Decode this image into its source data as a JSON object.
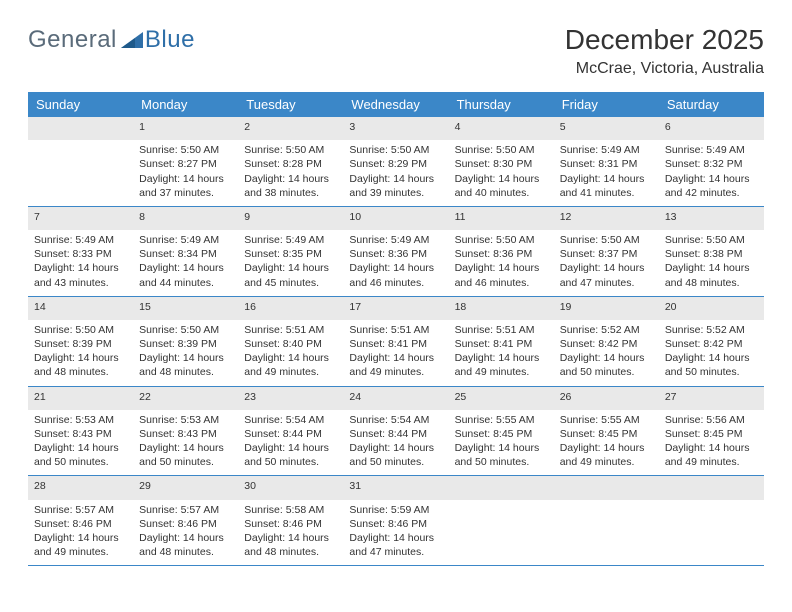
{
  "branding": {
    "logo_general": "General",
    "logo_blue": "Blue",
    "logo_mark_color": "#2f6fa8"
  },
  "header": {
    "month_title": "December 2025",
    "location": "McCrae, Victoria, Australia"
  },
  "calendar": {
    "type": "table",
    "header_bg": "#3b87c8",
    "header_fg": "#ffffff",
    "daynum_bg": "#e9e9e9",
    "row_border": "#3b87c8",
    "body_font_size": 10.5,
    "days": [
      "Sunday",
      "Monday",
      "Tuesday",
      "Wednesday",
      "Thursday",
      "Friday",
      "Saturday"
    ],
    "weeks": [
      {
        "nums": [
          "",
          "1",
          "2",
          "3",
          "4",
          "5",
          "6"
        ],
        "cells": [
          null,
          {
            "sunrise": "5:50 AM",
            "sunset": "8:27 PM",
            "daylight": "14 hours and 37 minutes."
          },
          {
            "sunrise": "5:50 AM",
            "sunset": "8:28 PM",
            "daylight": "14 hours and 38 minutes."
          },
          {
            "sunrise": "5:50 AM",
            "sunset": "8:29 PM",
            "daylight": "14 hours and 39 minutes."
          },
          {
            "sunrise": "5:50 AM",
            "sunset": "8:30 PM",
            "daylight": "14 hours and 40 minutes."
          },
          {
            "sunrise": "5:49 AM",
            "sunset": "8:31 PM",
            "daylight": "14 hours and 41 minutes."
          },
          {
            "sunrise": "5:49 AM",
            "sunset": "8:32 PM",
            "daylight": "14 hours and 42 minutes."
          }
        ]
      },
      {
        "nums": [
          "7",
          "8",
          "9",
          "10",
          "11",
          "12",
          "13"
        ],
        "cells": [
          {
            "sunrise": "5:49 AM",
            "sunset": "8:33 PM",
            "daylight": "14 hours and 43 minutes."
          },
          {
            "sunrise": "5:49 AM",
            "sunset": "8:34 PM",
            "daylight": "14 hours and 44 minutes."
          },
          {
            "sunrise": "5:49 AM",
            "sunset": "8:35 PM",
            "daylight": "14 hours and 45 minutes."
          },
          {
            "sunrise": "5:49 AM",
            "sunset": "8:36 PM",
            "daylight": "14 hours and 46 minutes."
          },
          {
            "sunrise": "5:50 AM",
            "sunset": "8:36 PM",
            "daylight": "14 hours and 46 minutes."
          },
          {
            "sunrise": "5:50 AM",
            "sunset": "8:37 PM",
            "daylight": "14 hours and 47 minutes."
          },
          {
            "sunrise": "5:50 AM",
            "sunset": "8:38 PM",
            "daylight": "14 hours and 48 minutes."
          }
        ]
      },
      {
        "nums": [
          "14",
          "15",
          "16",
          "17",
          "18",
          "19",
          "20"
        ],
        "cells": [
          {
            "sunrise": "5:50 AM",
            "sunset": "8:39 PM",
            "daylight": "14 hours and 48 minutes."
          },
          {
            "sunrise": "5:50 AM",
            "sunset": "8:39 PM",
            "daylight": "14 hours and 48 minutes."
          },
          {
            "sunrise": "5:51 AM",
            "sunset": "8:40 PM",
            "daylight": "14 hours and 49 minutes."
          },
          {
            "sunrise": "5:51 AM",
            "sunset": "8:41 PM",
            "daylight": "14 hours and 49 minutes."
          },
          {
            "sunrise": "5:51 AM",
            "sunset": "8:41 PM",
            "daylight": "14 hours and 49 minutes."
          },
          {
            "sunrise": "5:52 AM",
            "sunset": "8:42 PM",
            "daylight": "14 hours and 50 minutes."
          },
          {
            "sunrise": "5:52 AM",
            "sunset": "8:42 PM",
            "daylight": "14 hours and 50 minutes."
          }
        ]
      },
      {
        "nums": [
          "21",
          "22",
          "23",
          "24",
          "25",
          "26",
          "27"
        ],
        "cells": [
          {
            "sunrise": "5:53 AM",
            "sunset": "8:43 PM",
            "daylight": "14 hours and 50 minutes."
          },
          {
            "sunrise": "5:53 AM",
            "sunset": "8:43 PM",
            "daylight": "14 hours and 50 minutes."
          },
          {
            "sunrise": "5:54 AM",
            "sunset": "8:44 PM",
            "daylight": "14 hours and 50 minutes."
          },
          {
            "sunrise": "5:54 AM",
            "sunset": "8:44 PM",
            "daylight": "14 hours and 50 minutes."
          },
          {
            "sunrise": "5:55 AM",
            "sunset": "8:45 PM",
            "daylight": "14 hours and 50 minutes."
          },
          {
            "sunrise": "5:55 AM",
            "sunset": "8:45 PM",
            "daylight": "14 hours and 49 minutes."
          },
          {
            "sunrise": "5:56 AM",
            "sunset": "8:45 PM",
            "daylight": "14 hours and 49 minutes."
          }
        ]
      },
      {
        "nums": [
          "28",
          "29",
          "30",
          "31",
          "",
          "",
          ""
        ],
        "cells": [
          {
            "sunrise": "5:57 AM",
            "sunset": "8:46 PM",
            "daylight": "14 hours and 49 minutes."
          },
          {
            "sunrise": "5:57 AM",
            "sunset": "8:46 PM",
            "daylight": "14 hours and 48 minutes."
          },
          {
            "sunrise": "5:58 AM",
            "sunset": "8:46 PM",
            "daylight": "14 hours and 48 minutes."
          },
          {
            "sunrise": "5:59 AM",
            "sunset": "8:46 PM",
            "daylight": "14 hours and 47 minutes."
          },
          null,
          null,
          null
        ]
      }
    ],
    "labels": {
      "sunrise_prefix": "Sunrise: ",
      "sunset_prefix": "Sunset: ",
      "daylight_prefix": "Daylight: "
    }
  }
}
